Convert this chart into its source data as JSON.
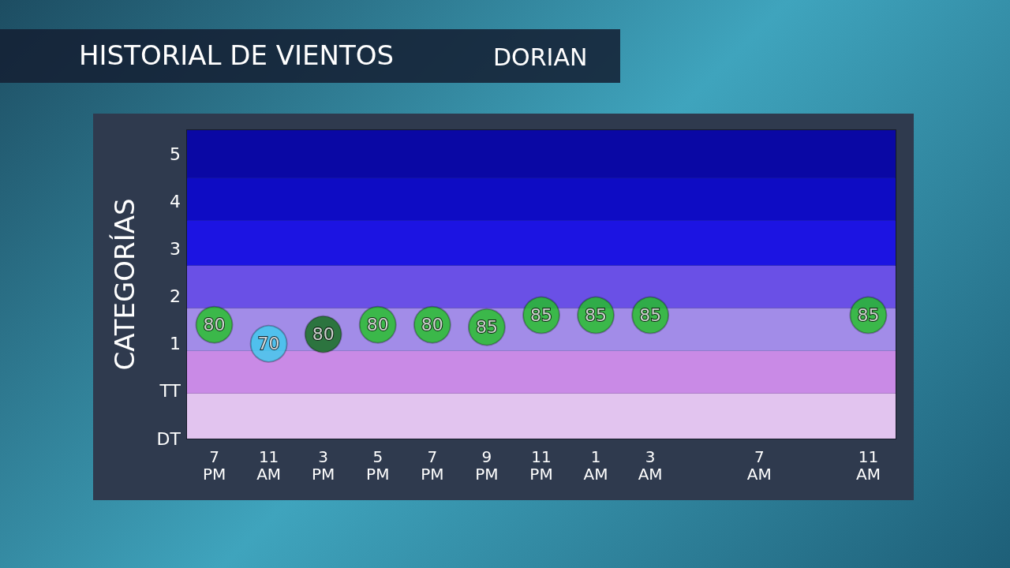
{
  "chart_data": {
    "type": "scatter",
    "title": "HISTORIAL DE VIENTOS",
    "subtitle": "DORIAN",
    "ylabel": "CATEGORÍAS",
    "categories": [
      "7\nPM",
      "11\nAM",
      "3\nPM",
      "5\nPM",
      "7\nPM",
      "9\nPM",
      "11\nPM",
      "1\nAM",
      "3\nAM",
      null,
      "7\nAM",
      null,
      "11\nAM"
    ],
    "values": [
      1.4,
      1.0,
      1.2,
      1.4,
      1.4,
      1.35,
      1.6,
      1.6,
      1.6,
      null,
      null,
      null,
      1.6
    ],
    "annotations": [
      {
        "text": "80",
        "x": "7\nPM",
        "y": 1.4
      },
      {
        "text": "70",
        "x": "11\nAM",
        "y": 1.0
      },
      {
        "text": "80",
        "x": "3\nPM",
        "y": 1.2
      },
      {
        "text": "80",
        "x": "5\nPM",
        "y": 1.4
      },
      "80",
      {
        "text": "85",
        "x": "9\nPM",
        "y": 1.35
      },
      {
        "text": "85",
        "x": "11\nPM",
        "y": 1.6
      },
      {
        "text": "85",
        "x": "1\nAM",
        "y": 1.6
      },
      {
        "text": "85",
        "x": "3\nAM",
        "y": 1.6
      },
      "85"
    ],
    "colors": [
      "#22c322",
      "#3ccdee",
      "#0f6e14",
      "#22c322",
      "#22c322",
      "#22c322",
      "#22c322",
      "#22c322",
      "#22c322",
      "#22c322",
      "#22c322",
      "#22c322",
      "#22c322"
    ],
    "ylim": [
      -1,
      5.5
    ],
    "yticks": [
      {
        "value": -1,
        "label": "DT"
      },
      {
        "value": 0,
        "label": "TT"
      },
      1,
      2,
      3,
      4,
      5
    ],
    "bands": [
      {
        "axis": "y",
        "from": -1,
        "to": -0.05,
        "color": "#e2c4ef"
      },
      {
        "axis": "y",
        "from": -0.05,
        "to": 0.85,
        "color": "#c98ae6"
      },
      {
        "axis": "y",
        "from": 0.85,
        "to": 1.75,
        "color": "#a28ce8"
      },
      {
        "axis": "y",
        "from": 1.75,
        "to": 2.65,
        "color": "#6a50e6"
      },
      {
        "axis": "y",
        "from": 2.65,
        "to": 3.6,
        "color": "#1c14e2"
      },
      {
        "axis": "y",
        "from": 3.6,
        "to": 4.5,
        "color": "#0e0cc4"
      },
      {
        "axis": "y",
        "from": 4.5,
        "to": 5.5,
        "color": "#0a08a4"
      }
    ],
    "grid": false,
    "marker": "circle"
  }
}
